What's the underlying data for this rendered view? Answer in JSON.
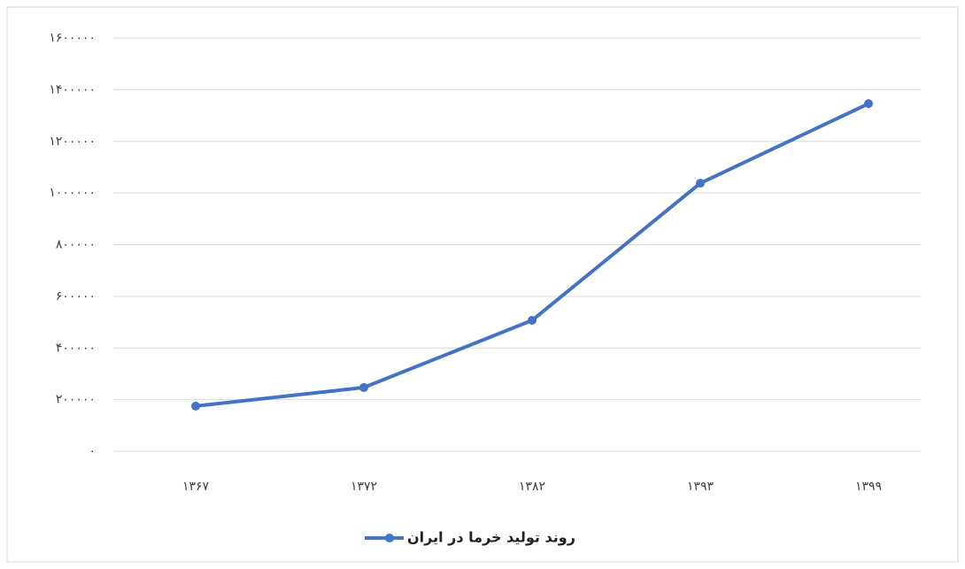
{
  "chart_data": {
    "type": "line",
    "categories": [
      "۱۳۶۷",
      "۱۳۷۲",
      "۱۳۸۲",
      "۱۳۹۳",
      "۱۳۹۹"
    ],
    "series": [
      {
        "name": "روند تولید خرما در ایران",
        "color": "#4472c4",
        "values": [
          175000,
          247000,
          507000,
          1038000,
          1346000
        ]
      }
    ],
    "ylim": [
      0,
      1600000
    ],
    "yticks": [
      {
        "value": 0,
        "label": "۰"
      },
      {
        "value": 200000,
        "label": "۲۰۰۰۰۰"
      },
      {
        "value": 400000,
        "label": "۴۰۰۰۰۰"
      },
      {
        "value": 600000,
        "label": "۶۰۰۰۰۰"
      },
      {
        "value": 800000,
        "label": "۸۰۰۰۰۰"
      },
      {
        "value": 1000000,
        "label": "۱۰۰۰۰۰۰"
      },
      {
        "value": 1200000,
        "label": "۱۲۰۰۰۰۰"
      },
      {
        "value": 1400000,
        "label": "۱۴۰۰۰۰۰"
      },
      {
        "value": 1600000,
        "label": "۱۶۰۰۰۰۰"
      }
    ],
    "grid": true,
    "legend": "bottom"
  }
}
